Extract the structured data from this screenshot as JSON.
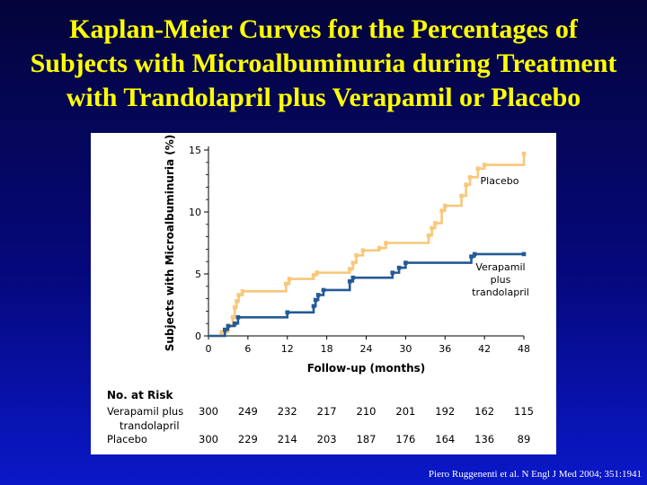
{
  "slide": {
    "title_lines": [
      "Kaplan-Meier Curves for the Percentages of",
      "Subjects with Microalbuminuria during Treatment",
      "with Trandolapril plus Verapamil or Placebo"
    ],
    "citation": "Piero Ruggenenti et al. N Engl J Med 2004; 351:1941"
  },
  "colors": {
    "placebo": "#f7c87a",
    "verapamil": "#245a96",
    "title": "#ffff00"
  },
  "chart_data": {
    "type": "line",
    "xlabel": "Follow-up (months)",
    "ylabel": "Subjects with Microalbuminuria (%)",
    "xlim": [
      0,
      48
    ],
    "ylim": [
      0,
      15
    ],
    "xticks": [
      0,
      6,
      12,
      18,
      24,
      30,
      36,
      42,
      48
    ],
    "yticks": [
      0,
      5,
      10,
      15
    ],
    "series": [
      {
        "name": "Placebo",
        "label_lines": [
          "Placebo"
        ],
        "points": [
          [
            0,
            0
          ],
          [
            2,
            0.3
          ],
          [
            3,
            0.8
          ],
          [
            3.7,
            1.5
          ],
          [
            4,
            2.3
          ],
          [
            4.3,
            2.8
          ],
          [
            4.6,
            3.3
          ],
          [
            5.2,
            3.6
          ],
          [
            11.8,
            4.2
          ],
          [
            12.3,
            4.6
          ],
          [
            16,
            4.9
          ],
          [
            16.5,
            5.1
          ],
          [
            21.5,
            5.4
          ],
          [
            22,
            5.9
          ],
          [
            22.5,
            6.5
          ],
          [
            23.5,
            6.9
          ],
          [
            26,
            7.1
          ],
          [
            27,
            7.5
          ],
          [
            33.5,
            8.1
          ],
          [
            34,
            8.7
          ],
          [
            34.5,
            9.1
          ],
          [
            35.5,
            10.1
          ],
          [
            36,
            10.5
          ],
          [
            38.5,
            11.3
          ],
          [
            39.2,
            12.2
          ],
          [
            39.8,
            12.8
          ],
          [
            41,
            13.5
          ],
          [
            42,
            13.8
          ],
          [
            48,
            14.7
          ]
        ]
      },
      {
        "name": "Verapamil plus trandolapril",
        "label_lines": [
          "Verapamil",
          "plus",
          "trandolapril"
        ],
        "points": [
          [
            0,
            0
          ],
          [
            2.5,
            0.5
          ],
          [
            3,
            0.8
          ],
          [
            4,
            1
          ],
          [
            4.5,
            1.5
          ],
          [
            12,
            1.9
          ],
          [
            16,
            2.4
          ],
          [
            16.3,
            2.9
          ],
          [
            16.7,
            3.3
          ],
          [
            17.5,
            3.7
          ],
          [
            21.5,
            4.4
          ],
          [
            22,
            4.7
          ],
          [
            28,
            5.1
          ],
          [
            29,
            5.5
          ],
          [
            30,
            5.9
          ],
          [
            40,
            6.4
          ],
          [
            40.5,
            6.6
          ],
          [
            48,
            6.6
          ]
        ]
      }
    ],
    "risk_table": {
      "heading": "No. at Risk",
      "rows": [
        {
          "label_lines": [
            "Verapamil plus",
            "trandolapril"
          ],
          "values": [
            "300",
            "249",
            "232",
            "217",
            "210",
            "201",
            "192",
            "162",
            "115"
          ]
        },
        {
          "label_lines": [
            "Placebo"
          ],
          "values": [
            "300",
            "229",
            "214",
            "203",
            "187",
            "176",
            "164",
            "136",
            "89"
          ]
        }
      ]
    }
  }
}
